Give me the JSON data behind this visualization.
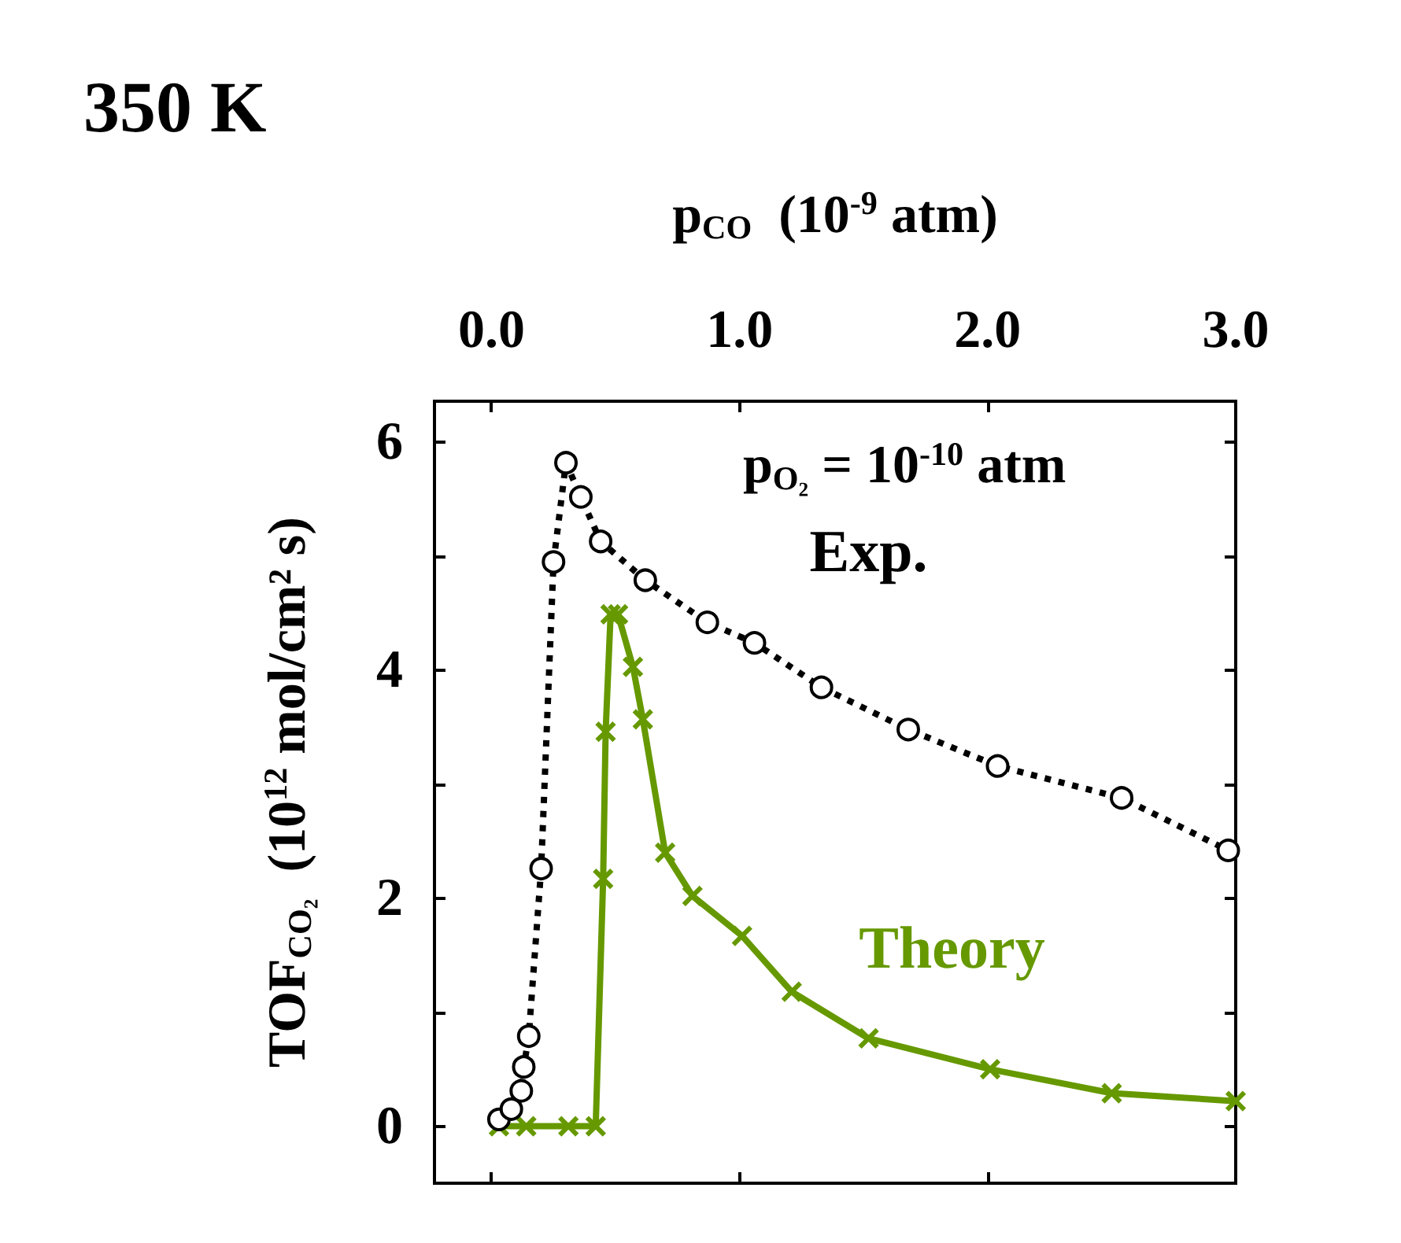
{
  "chart_data": {
    "type": "line",
    "title": "350 K",
    "xlabel": "p$_{CO}$  (10$^{-9}$ atm)",
    "ylabel": "TOF$_{CO₂}$  (10$^{12}$ mol/cm² s)",
    "annotations": [
      "p$_{O₂}$ = 10$^{-10}$ atm"
    ],
    "series": [
      {
        "name": "Exp.",
        "color": "#000000",
        "marker": "circle",
        "line_style": "dotted",
        "x": [
          0.03,
          0.08,
          0.12,
          0.13,
          0.15,
          0.2,
          0.25,
          0.3,
          0.36,
          0.44,
          0.62,
          0.87,
          1.06,
          1.33,
          1.68,
          2.04,
          2.54,
          2.97
        ],
        "values": [
          0.06,
          0.15,
          0.31,
          0.52,
          0.79,
          2.26,
          4.95,
          5.82,
          5.52,
          5.13,
          4.79,
          4.42,
          4.24,
          3.85,
          3.48,
          3.16,
          2.88,
          2.42
        ]
      },
      {
        "name": "Theory",
        "color": "#669900",
        "marker": "cross",
        "line_style": "solid",
        "x": [
          0.03,
          0.14,
          0.31,
          0.42,
          0.45,
          0.46,
          0.48,
          0.51,
          0.57,
          0.61,
          0.7,
          0.81,
          1.01,
          1.21,
          1.52,
          2.01,
          2.5,
          3.0
        ],
        "values": [
          0,
          0,
          0,
          0,
          2.17,
          3.46,
          4.49,
          4.49,
          4.03,
          3.57,
          2.4,
          2.02,
          1.67,
          1.18,
          0.77,
          0.5,
          0.29,
          0.22
        ]
      }
    ],
    "xlim": [
      -0.23,
      3.0
    ],
    "xticks": [
      {
        "value": 0,
        "label": "0.0"
      },
      {
        "value": 1,
        "label": "1.0"
      },
      {
        "value": 2,
        "label": "2.0"
      },
      {
        "value": 3,
        "label": "3.0"
      }
    ],
    "ylim": [
      -0.5,
      6.36
    ],
    "yticks": [
      0,
      {
        "value": 1,
        "label": null
      },
      2,
      {
        "value": 3,
        "label": null
      },
      4,
      {
        "value": 5,
        "label": null
      },
      6
    ],
    "grid": false,
    "legend": false
  }
}
